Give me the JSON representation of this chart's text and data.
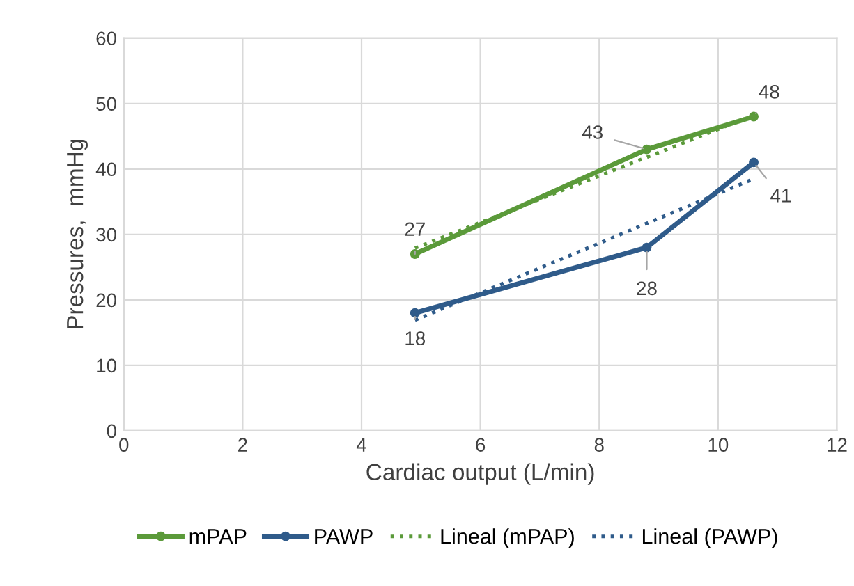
{
  "chart_data": {
    "type": "line",
    "xlabel": "Cardiac output (L/min)",
    "ylabel": "Pressures,  mmHg",
    "xlim": [
      0,
      12
    ],
    "xticks": [
      0,
      2,
      4,
      6,
      8,
      10,
      12
    ],
    "ylim": [
      0,
      60
    ],
    "yticks": [
      0,
      10,
      20,
      30,
      40,
      50,
      60
    ],
    "grid": true,
    "legend": "bottom",
    "marker": "circle",
    "series": [
      {
        "name": "mPAP",
        "color": "#5b9a3a",
        "x": [
          4.9,
          8.8,
          10.6
        ],
        "values": [
          27,
          43,
          48
        ],
        "value_labels": [
          "27",
          "43",
          "48"
        ]
      },
      {
        "name": "PAWP",
        "color": "#2f5b8a",
        "x": [
          4.9,
          8.8,
          10.6
        ],
        "values": [
          18,
          28,
          41
        ],
        "value_labels": [
          "18",
          "28",
          "41"
        ]
      },
      {
        "name": "Lineal (mPAP)",
        "color": "#5b9a3a",
        "x": [
          4.9,
          10.6
        ],
        "values": [
          27.9,
          48.2
        ],
        "line_style": "dotted",
        "marker": "none"
      },
      {
        "name": "Lineal (PAWP)",
        "color": "#2f5b8a",
        "x": [
          4.9,
          10.6
        ],
        "values": [
          16.9,
          38.5
        ],
        "line_style": "dotted",
        "marker": "none"
      }
    ]
  }
}
